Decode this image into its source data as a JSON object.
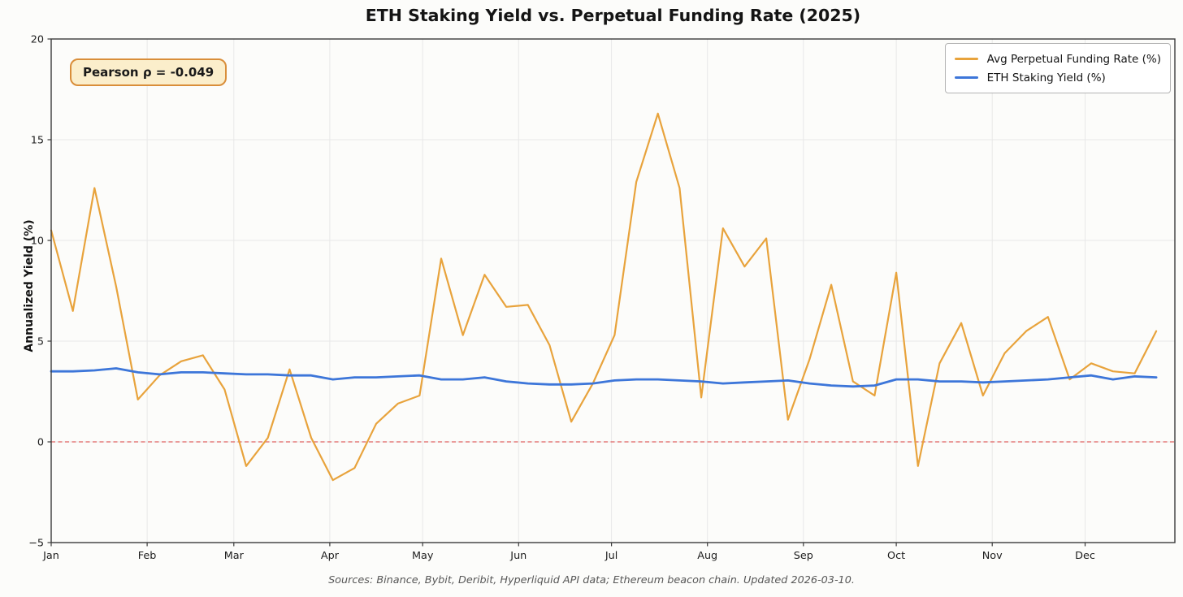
{
  "header": {
    "title": "ETH Staking Yield vs. Perpetual Funding Rate (2025)"
  },
  "annotation": {
    "text": "Pearson ρ = -0.049",
    "bg_color": "#FBEECB",
    "border_color": "#D98E3A"
  },
  "legend": {
    "items": [
      {
        "label": "Avg Perpetual Funding Rate (%)",
        "color": "#E8A33C"
      },
      {
        "label": "ETH Staking Yield (%)",
        "color": "#3D76D9"
      }
    ]
  },
  "footer": {
    "text": "Sources: Binance, Bybit, Deribit, Hyperliquid API data; Ethereum beacon chain. Updated 2026-03-10."
  },
  "colors": {
    "background": "#FCFCFA",
    "grid": "#E8E8E8",
    "spine": "#3a3a3a",
    "zero_line": "#E06161",
    "funding_rate": "#E8A33C",
    "staking_yield": "#3D76D9"
  },
  "chart_data": {
    "type": "line",
    "title": "ETH Staking Yield vs. Perpetual Funding Rate (2025)",
    "xlabel": "",
    "ylabel": "Annualized Yield (%)",
    "ylim": [
      -5,
      20
    ],
    "xlim_days": [
      0,
      363
    ],
    "grid": true,
    "legend_position": "upper right",
    "x_sampling": "weekly (52 points, day = 7 * index)",
    "y_ticks": [
      {
        "value": 20,
        "label": "20"
      },
      {
        "value": 15,
        "label": "15"
      },
      {
        "value": 10,
        "label": "10"
      },
      {
        "value": 5,
        "label": "5"
      },
      {
        "value": 0,
        "label": "0"
      },
      {
        "value": -5,
        "label": "−5"
      }
    ],
    "x_ticks": [
      {
        "day": 0,
        "label": "Jan"
      },
      {
        "day": 31,
        "label": "Feb"
      },
      {
        "day": 59,
        "label": "Mar"
      },
      {
        "day": 90,
        "label": "Apr"
      },
      {
        "day": 120,
        "label": "May"
      },
      {
        "day": 151,
        "label": "Jun"
      },
      {
        "day": 181,
        "label": "Jul"
      },
      {
        "day": 212,
        "label": "Aug"
      },
      {
        "day": 243,
        "label": "Sep"
      },
      {
        "day": 273,
        "label": "Oct"
      },
      {
        "day": 304,
        "label": "Nov"
      },
      {
        "day": 334,
        "label": "Dec"
      }
    ],
    "zero_reference_line": {
      "value": 0,
      "style": "dashed",
      "color": "#E06161"
    },
    "series": [
      {
        "name": "Avg Perpetual Funding Rate (%)",
        "color": "#E8A33C",
        "line_width": 2.2,
        "values": [
          10.5,
          6.5,
          12.6,
          7.7,
          2.1,
          3.3,
          4.0,
          4.3,
          2.6,
          -1.2,
          0.2,
          3.6,
          0.2,
          -1.9,
          -1.3,
          0.9,
          1.9,
          2.3,
          9.1,
          5.3,
          8.3,
          6.7,
          6.8,
          4.8,
          1.0,
          2.9,
          5.3,
          12.9,
          16.3,
          12.6,
          2.2,
          10.6,
          8.7,
          10.1,
          1.1,
          4.1,
          7.8,
          3.0,
          2.3,
          8.4,
          -1.2,
          3.9,
          5.9,
          2.3,
          4.4,
          5.5,
          6.2,
          3.1,
          3.9,
          3.5,
          3.4,
          5.5
        ]
      },
      {
        "name": "ETH Staking Yield (%)",
        "color": "#3D76D9",
        "line_width": 2.8,
        "values": [
          3.5,
          3.5,
          3.55,
          3.65,
          3.45,
          3.35,
          3.45,
          3.45,
          3.4,
          3.35,
          3.35,
          3.3,
          3.3,
          3.1,
          3.2,
          3.2,
          3.25,
          3.3,
          3.1,
          3.1,
          3.2,
          3.0,
          2.9,
          2.85,
          2.85,
          2.9,
          3.05,
          3.1,
          3.1,
          3.05,
          3.0,
          2.9,
          2.95,
          3.0,
          3.05,
          2.9,
          2.8,
          2.75,
          2.8,
          3.1,
          3.1,
          3.0,
          3.0,
          2.95,
          3.0,
          3.05,
          3.1,
          3.2,
          3.3,
          3.1,
          3.25,
          3.2
        ]
      }
    ]
  }
}
